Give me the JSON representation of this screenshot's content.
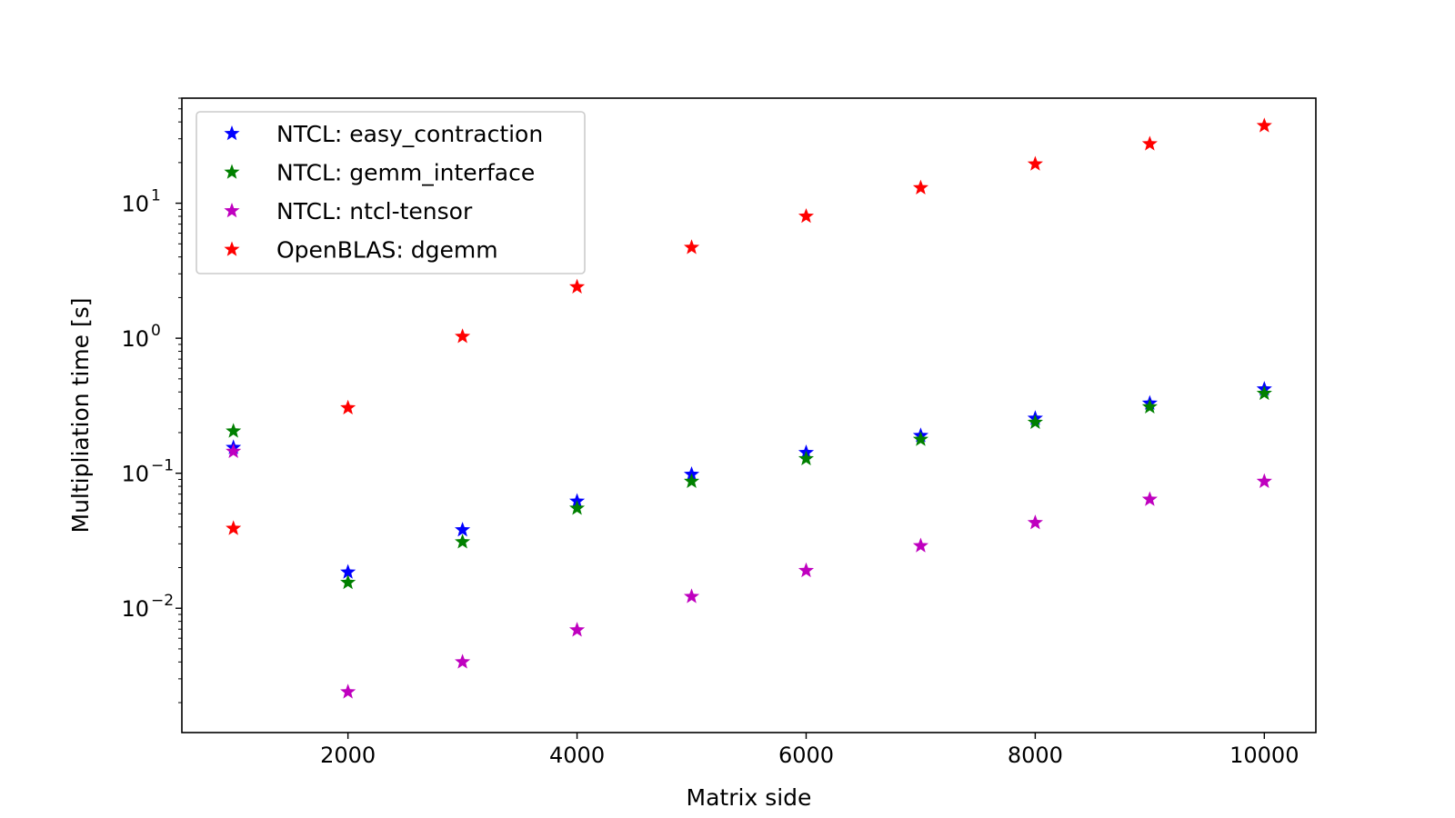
{
  "chart_data": {
    "type": "scatter",
    "title": "",
    "xlabel": "Matrix side",
    "ylabel": "Multipliation time [s]",
    "xlim": [
      550,
      10450
    ],
    "ylim": [
      0.0012,
      60
    ],
    "yscale": "log",
    "grid": false,
    "legend_position": "top-left",
    "marker": "star",
    "x_ticks": [
      2000,
      4000,
      6000,
      8000,
      10000
    ],
    "y_ticks": [
      {
        "value": 0.01,
        "base": "10",
        "exp": "−2"
      },
      {
        "value": 0.1,
        "base": "10",
        "exp": "−1"
      },
      {
        "value": 1,
        "base": "10",
        "exp": "0"
      },
      {
        "value": 10,
        "base": "10",
        "exp": "1"
      }
    ],
    "series": [
      {
        "name": "NTCL: easy_contraction",
        "color": "#0000ff",
        "x": [
          1000,
          2000,
          3000,
          4000,
          5000,
          6000,
          7000,
          8000,
          9000,
          10000
        ],
        "y": [
          0.155,
          0.0185,
          0.038,
          0.062,
          0.098,
          0.142,
          0.19,
          0.255,
          0.33,
          0.42
        ]
      },
      {
        "name": "NTCL: gemm_interface",
        "color": "#008000",
        "x": [
          1000,
          2000,
          3000,
          4000,
          5000,
          6000,
          7000,
          8000,
          9000,
          10000
        ],
        "y": [
          0.205,
          0.0155,
          0.031,
          0.055,
          0.087,
          0.128,
          0.178,
          0.238,
          0.31,
          0.39
        ]
      },
      {
        "name": "NTCL: ntcl-tensor",
        "color": "#bf00bf",
        "x": [
          1000,
          2000,
          3000,
          4000,
          5000,
          6000,
          7000,
          8000,
          9000,
          10000
        ],
        "y": [
          0.145,
          0.0024,
          0.004,
          0.0069,
          0.0122,
          0.019,
          0.029,
          0.043,
          0.064,
          0.087
        ]
      },
      {
        "name": "OpenBLAS: dgemm",
        "color": "#ff0000",
        "x": [
          1000,
          2000,
          3000,
          4000,
          5000,
          6000,
          7000,
          8000,
          9000,
          10000
        ],
        "y": [
          0.039,
          0.305,
          1.03,
          2.4,
          4.7,
          8.0,
          13.0,
          19.5,
          27.5,
          37.5
        ]
      }
    ]
  }
}
